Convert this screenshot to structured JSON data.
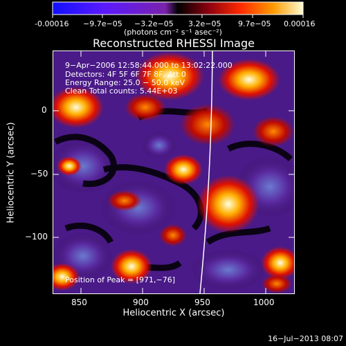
{
  "colorbar": {
    "ticks": [
      "-0.00016",
      "−9.7e−05",
      "−3.2e−05",
      "3.2e−05",
      "9.7e−05",
      "0.00016"
    ],
    "units": "(photons cm⁻² s⁻¹ asec⁻²)"
  },
  "plot": {
    "title": "Reconstructed RHESSI Image",
    "info_lines": [
      "9−Apr−2006 12:58:44.000 to 13:02:22.000",
      "Detectors: 4F 5F 6F 7F 8F, Att 0",
      "Energy Range: 25.0 − 50.0 keV",
      "Clean     Total counts: 5.44E+03"
    ],
    "peak_label": "Position of Peak = [971,−76]",
    "x_label": "Heliocentric X (arcsec)",
    "y_label": "Heliocentric Y (arcsec)",
    "x_ticks": [
      "850",
      "900",
      "950",
      "1000"
    ],
    "y_ticks": [
      "0",
      "−50",
      "−100"
    ]
  },
  "timestamp": "16−Jul−2013 08:07"
}
